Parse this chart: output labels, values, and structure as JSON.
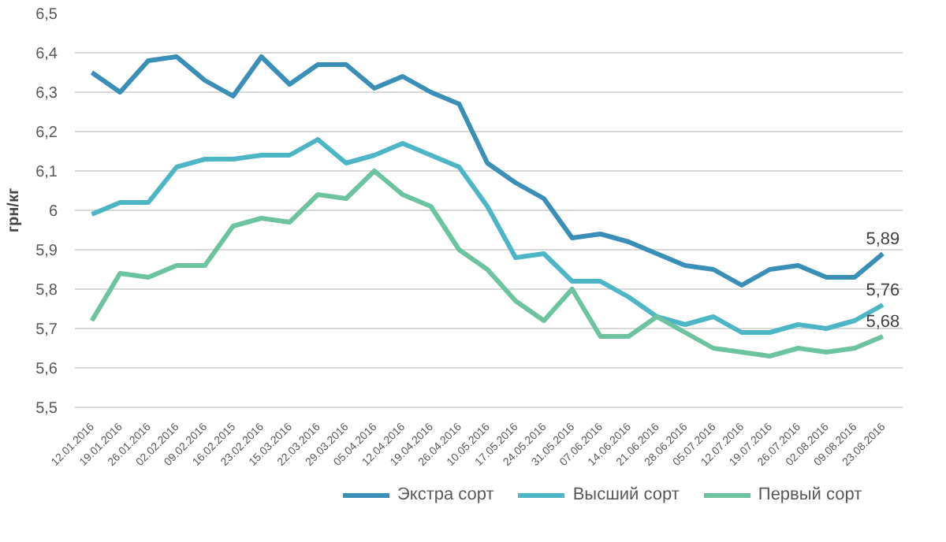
{
  "chart_data": {
    "type": "line",
    "ylabel": "грн/кг",
    "categories": [
      "12.01.2016",
      "19.01.2016",
      "26.01.2016",
      "02.02.2016",
      "09.02.2016",
      "16.02.2015",
      "23.02.2016",
      "15.03.2016",
      "22.03.2016",
      "29.03.2016",
      "05.04.2016",
      "12.04.2016",
      "19.04.2016",
      "26.04.2016",
      "10.05.2016",
      "17.05.2016",
      "24.05.2016",
      "31.05.2016",
      "07.06.2016",
      "14.06.2016",
      "21.06.2016",
      "28.06.2016",
      "05.07.2016",
      "12.07.2016",
      "19.07.2016",
      "26.07.2016",
      "02.08.2016",
      "09.08.2016",
      "23.08.2016"
    ],
    "series": [
      {
        "name": "Экстра сорт",
        "color": "#3a8fb7",
        "values": [
          6.35,
          6.3,
          6.38,
          6.39,
          6.33,
          6.29,
          6.39,
          6.32,
          6.37,
          6.37,
          6.31,
          6.34,
          6.3,
          6.27,
          6.12,
          6.07,
          6.03,
          5.93,
          5.94,
          5.92,
          5.89,
          5.86,
          5.85,
          5.81,
          5.85,
          5.86,
          5.83,
          5.83,
          5.89
        ],
        "value_labels": [
          null,
          null,
          null,
          null,
          null,
          null,
          null,
          null,
          null,
          null,
          null,
          null,
          null,
          null,
          null,
          null,
          null,
          null,
          null,
          null,
          null,
          null,
          null,
          null,
          null,
          null,
          null,
          null,
          "5,89"
        ]
      },
      {
        "name": "Высший сорт",
        "color": "#4db6c4",
        "values": [
          5.99,
          6.02,
          6.02,
          6.11,
          6.13,
          6.13,
          6.14,
          6.14,
          6.18,
          6.12,
          6.14,
          6.17,
          6.14,
          6.11,
          6.01,
          5.88,
          5.89,
          5.82,
          5.82,
          5.78,
          5.73,
          5.71,
          5.73,
          5.69,
          5.69,
          5.71,
          5.7,
          5.72,
          5.76
        ],
        "value_labels": [
          null,
          null,
          null,
          null,
          null,
          null,
          null,
          null,
          null,
          null,
          null,
          null,
          null,
          null,
          null,
          null,
          null,
          null,
          null,
          null,
          null,
          null,
          null,
          null,
          null,
          null,
          null,
          null,
          "5,76"
        ]
      },
      {
        "name": "Первый сорт",
        "color": "#6cc3a0",
        "values": [
          5.72,
          5.84,
          5.83,
          5.86,
          5.86,
          5.96,
          5.98,
          5.97,
          6.04,
          6.03,
          6.1,
          6.04,
          6.01,
          5.9,
          5.85,
          5.77,
          5.72,
          5.8,
          5.68,
          5.68,
          5.73,
          5.69,
          5.65,
          5.64,
          5.63,
          5.65,
          5.64,
          5.65,
          5.68
        ],
        "value_labels": [
          null,
          null,
          null,
          null,
          null,
          null,
          null,
          null,
          null,
          null,
          null,
          null,
          null,
          null,
          null,
          null,
          null,
          null,
          null,
          null,
          null,
          null,
          null,
          null,
          null,
          null,
          null,
          null,
          "5,68"
        ]
      }
    ],
    "ylim": [
      5.5,
      6.5
    ],
    "yticks": [
      {
        "value": 5.5,
        "label": "5,5"
      },
      {
        "value": 5.6,
        "label": "5,6"
      },
      {
        "value": 5.7,
        "label": "5,7"
      },
      {
        "value": 5.8,
        "label": "5,8"
      },
      {
        "value": 5.9,
        "label": "5,9"
      },
      6,
      {
        "value": 6.1,
        "label": "6,1"
      },
      {
        "value": 6.2,
        "label": "6,2"
      },
      {
        "value": 6.3,
        "label": "6,3"
      },
      {
        "value": 6.4,
        "label": "6,4"
      },
      {
        "value": 6.5,
        "label": "6,5"
      }
    ],
    "grid": "y",
    "legend": "bottom",
    "marker": "none",
    "line_style": "solid"
  }
}
